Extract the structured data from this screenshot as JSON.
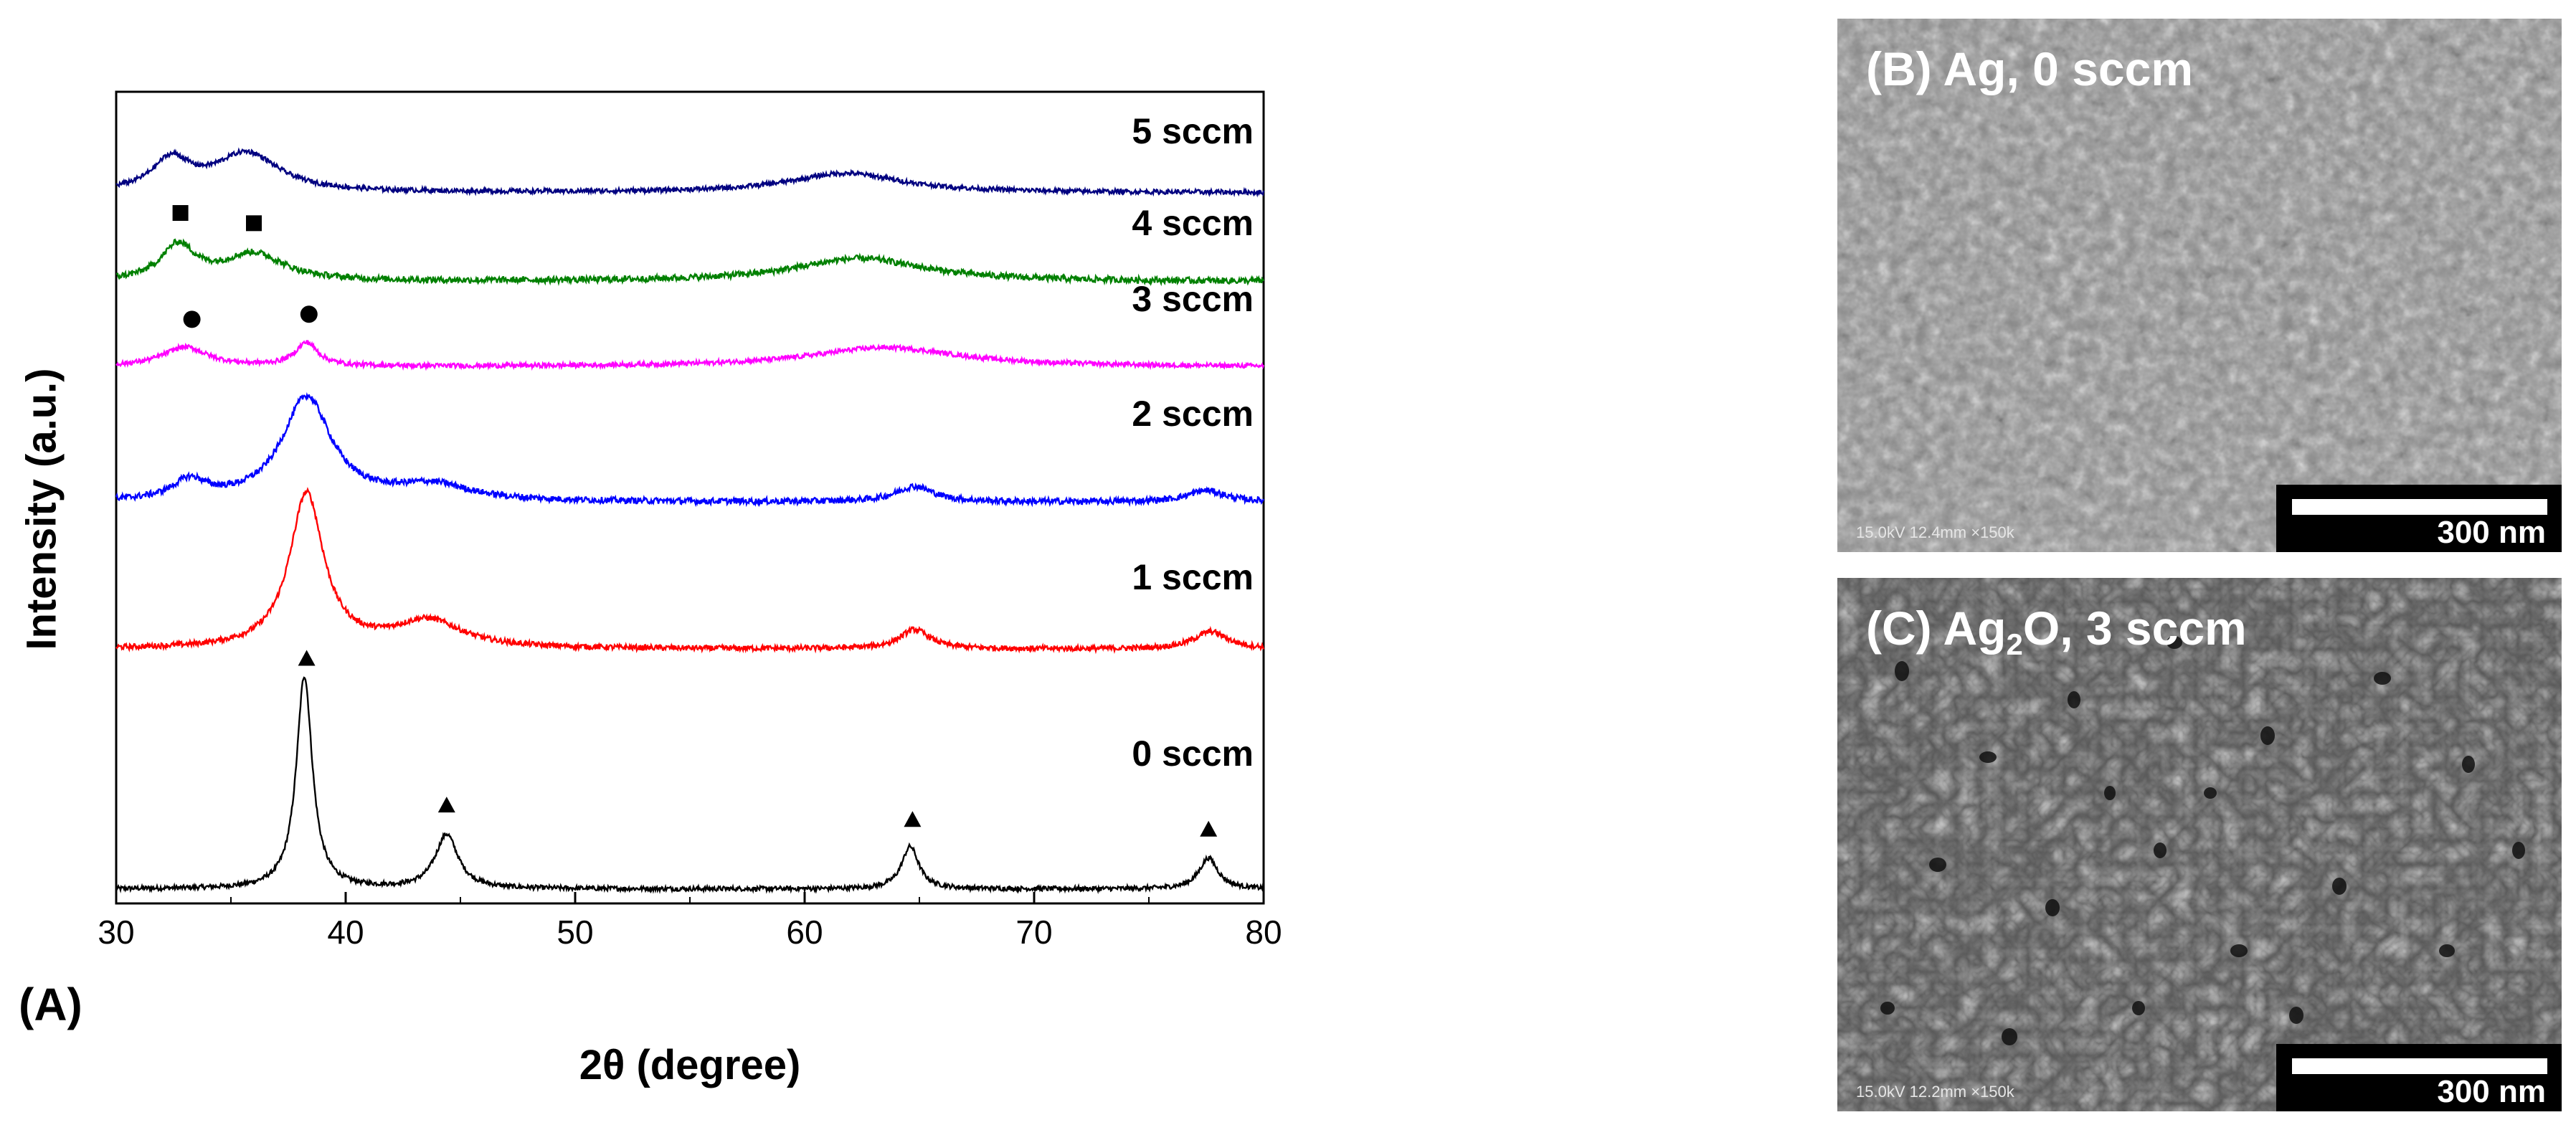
{
  "panel_a": {
    "letter": "(A)"
  },
  "chart_data": {
    "type": "line",
    "title": "",
    "xlabel": "2θ (degree)",
    "ylabel": "Intensity (a.u.)",
    "xlim": [
      30,
      80
    ],
    "x_ticks": [
      30,
      40,
      50,
      60,
      70,
      80
    ],
    "grid": false,
    "series": [
      {
        "name": "0 sccm",
        "color": "#000000",
        "baseline": 0.0,
        "noise": 0.006,
        "peaks": [
          [
            38.2,
            0.55,
            0.42
          ],
          [
            44.4,
            0.14,
            0.6
          ],
          [
            64.6,
            0.11,
            0.45
          ],
          [
            77.6,
            0.08,
            0.5
          ]
        ],
        "markers": [
          {
            "x": 38.3,
            "shape": "triangle"
          },
          {
            "x": 44.4,
            "shape": "triangle"
          },
          {
            "x": 64.7,
            "shape": "triangle"
          },
          {
            "x": 77.6,
            "shape": "triangle"
          }
        ]
      },
      {
        "name": "1 sccm",
        "color": "#ff0000",
        "baseline": 0.62,
        "noise": 0.007,
        "peaks": [
          [
            38.3,
            0.4,
            0.9
          ],
          [
            43.6,
            0.07,
            1.8
          ],
          [
            64.8,
            0.05,
            0.8
          ],
          [
            77.7,
            0.045,
            0.9
          ]
        ],
        "markers": []
      },
      {
        "name": "2 sccm",
        "color": "#0000ff",
        "baseline": 1.0,
        "noise": 0.008,
        "peaks": [
          [
            38.3,
            0.27,
            1.3
          ],
          [
            33.2,
            0.05,
            0.9
          ],
          [
            43.8,
            0.04,
            2.0
          ],
          [
            64.8,
            0.04,
            1.0
          ],
          [
            77.5,
            0.03,
            1.0
          ]
        ],
        "markers": []
      },
      {
        "name": "3 sccm",
        "color": "#ff00ff",
        "baseline": 1.35,
        "noise": 0.006,
        "peaks": [
          [
            33.0,
            0.05,
            1.2
          ],
          [
            38.3,
            0.06,
            0.6
          ],
          [
            63.5,
            0.05,
            4.0
          ]
        ],
        "markers": [
          {
            "x": 33.3,
            "shape": "circle"
          },
          {
            "x": 38.4,
            "shape": "circle"
          }
        ]
      },
      {
        "name": "4 sccm",
        "color": "#008000",
        "baseline": 1.57,
        "noise": 0.008,
        "peaks": [
          [
            32.7,
            0.09,
            0.9
          ],
          [
            36.0,
            0.07,
            1.6
          ],
          [
            62.4,
            0.06,
            3.5
          ]
        ],
        "markers": [
          {
            "x": 32.8,
            "shape": "square"
          },
          {
            "x": 36.0,
            "shape": "square"
          }
        ]
      },
      {
        "name": "5 sccm",
        "color": "#000080",
        "baseline": 1.8,
        "noise": 0.006,
        "peaks": [
          [
            32.4,
            0.08,
            1.0
          ],
          [
            35.7,
            0.1,
            1.7
          ],
          [
            61.8,
            0.05,
            3.0
          ]
        ],
        "markers": []
      }
    ]
  },
  "sem_b": {
    "label_prefix": "(B) Ag, 0 sccm",
    "meta": "15.0kV 12.4mm ×150k",
    "scale": "300 nm"
  },
  "sem_c": {
    "label_part1": "(C) Ag",
    "label_sub": "2",
    "label_part2": "O, 3 sccm",
    "meta": "15.0kV 12.2mm ×150k",
    "scale": "300 nm"
  }
}
